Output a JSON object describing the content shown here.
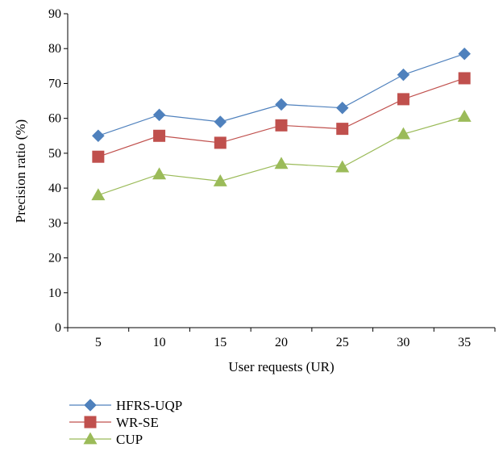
{
  "chart_data": {
    "type": "line",
    "title": "",
    "xlabel": "User requests (UR)",
    "ylabel": "Precision ratio (%)",
    "categories": [
      "5",
      "10",
      "15",
      "20",
      "25",
      "30",
      "35"
    ],
    "ylim": [
      0,
      90
    ],
    "yticks": [
      "0",
      "10",
      "20",
      "30",
      "40",
      "50",
      "60",
      "70",
      "80",
      "90"
    ],
    "grid": false,
    "legend_position": "bottom-left",
    "series": [
      {
        "name": "HFRS-UQP",
        "values": [
          55,
          61,
          59,
          64,
          63,
          72.5,
          78.5
        ],
        "color": "#4f81bd",
        "marker": "diamond"
      },
      {
        "name": "WR-SE",
        "values": [
          49,
          55,
          53,
          58,
          57,
          65.5,
          71.5
        ],
        "color": "#c0504d",
        "marker": "square"
      },
      {
        "name": "CUP",
        "values": [
          38,
          44,
          42,
          47,
          46,
          55.5,
          60.5
        ],
        "color": "#9bbb59",
        "marker": "triangle"
      }
    ]
  }
}
